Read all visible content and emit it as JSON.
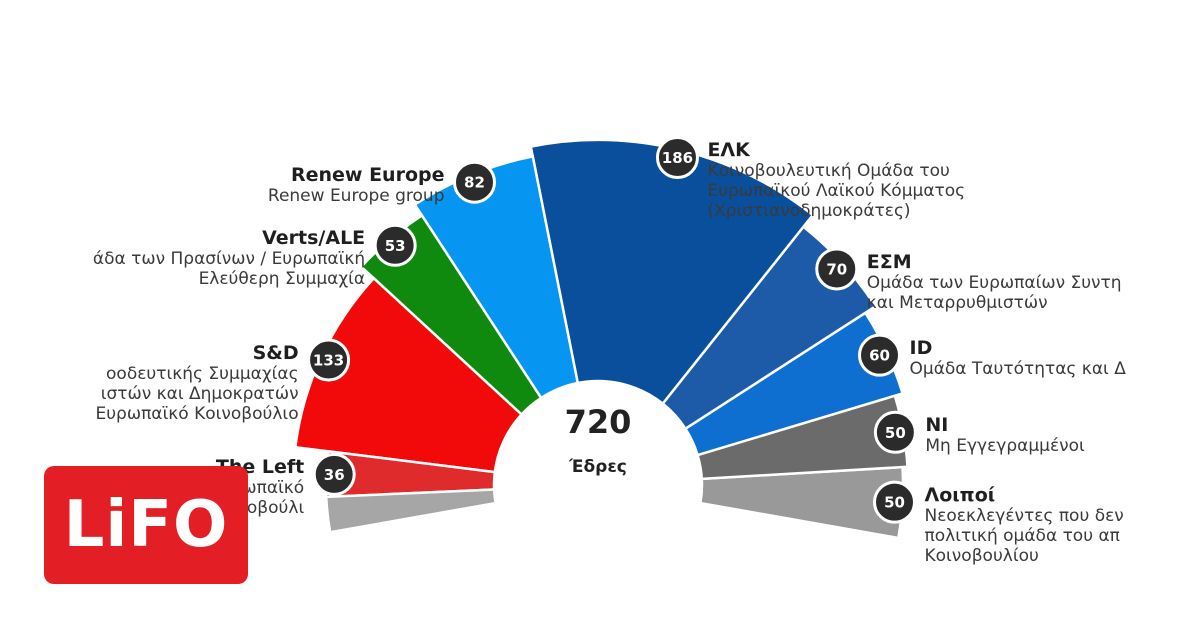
{
  "chart_data": {
    "type": "pie",
    "variant": "parliament-semicircle",
    "total_value": "720",
    "total_unit": "Έδρες",
    "series": [
      {
        "name": "Λοιποί",
        "description": "Νεοεκλεγέντες που δεν\nπολιτική ομάδα του απ\nΚοινοβουλίου",
        "seats": 50,
        "color": "#999999",
        "side": "right"
      },
      {
        "name": "NI",
        "description": "Μη Εγγεγραμμένοι",
        "seats": 50,
        "color": "#6b6b6b",
        "side": "right"
      },
      {
        "name": "ID",
        "description": "Ομάδα Ταυτότητας και Δ",
        "seats": 60,
        "color": "#0f6fd1",
        "side": "right"
      },
      {
        "name": "ΕΣΜ",
        "description": "Ομάδα των Ευρωπαίων Συντη\nκαι Μεταρρυθμιστών",
        "seats": 70,
        "color": "#1d5ba8",
        "side": "right"
      },
      {
        "name": "ΕΛΚ",
        "description": "Κοινοβουλευτική Ομάδα του\nΕυρωπαϊκού Λαϊκού Κόμματος\n(Χριστιανοδημοκράτες)",
        "seats": 186,
        "color": "#0a4f9c",
        "side": "right"
      },
      {
        "name": "Renew Europe",
        "description": "Renew Europe group",
        "seats": 82,
        "color": "#0696f2",
        "side": "left"
      },
      {
        "name": "Verts/ALE",
        "description": "άδα των Πρασίνων / Ευρωπαϊκή\nΕλεύθερη Συμμαχία",
        "seats": 53,
        "color": "#0f8a0f",
        "side": "left"
      },
      {
        "name": "S&D",
        "description": "οοδευτικής Συμμαχίας\nιστών και Δημοκρατών\nΕυρωπαϊκό Κοινοβούλιο",
        "seats": 133,
        "color": "#f20a0a",
        "side": "left"
      },
      {
        "name": "The Left",
        "description": "ράς στο Ευρωπαϊκό\nοβούλι",
        "seats": 36,
        "color": "#df2b2b",
        "side": "left"
      }
    ],
    "extra_left_wedge_color": "#a6a6a6"
  },
  "logo": {
    "text": "LiFO",
    "color": "#e31e24"
  }
}
